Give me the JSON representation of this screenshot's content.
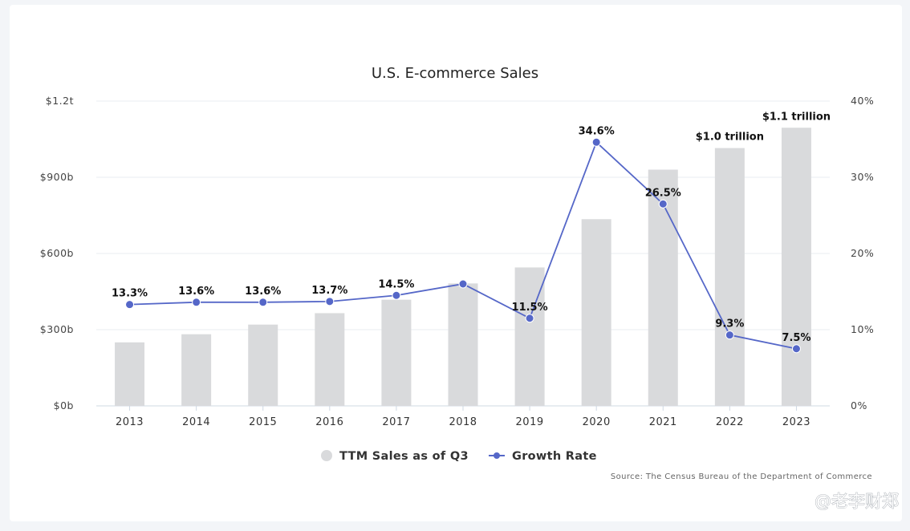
{
  "chart_data": {
    "type": "bar",
    "title": "U.S. E-commerce Sales",
    "categories": [
      "2013",
      "2014",
      "2015",
      "2016",
      "2017",
      "2018",
      "2019",
      "2020",
      "2021",
      "2022",
      "2023"
    ],
    "series": [
      {
        "name": "TTM Sales as of Q3",
        "type": "bar",
        "axis": "left",
        "color": "#d9dadc",
        "values": [
          250,
          282,
          320,
          365,
          418,
          482,
          545,
          735,
          930,
          1015,
          1095
        ]
      },
      {
        "name": "Growth Rate",
        "type": "line",
        "axis": "right",
        "color": "#5567c8",
        "values": [
          13.3,
          13.6,
          13.6,
          13.7,
          14.5,
          16.0,
          11.5,
          34.6,
          26.5,
          9.3,
          7.5
        ],
        "labels": [
          "13.3%",
          "13.6%",
          "13.6%",
          "13.7%",
          "14.5%",
          "",
          "11.5%",
          "34.6%",
          "26.5%",
          "9.3%",
          "7.5%"
        ]
      }
    ],
    "bar_annotations": [
      {
        "category": "2022",
        "text": "$1.0 trillion"
      },
      {
        "category": "2023",
        "text": "$1.1 trillion"
      }
    ],
    "y_left": {
      "min": 0,
      "max": 1200,
      "ticks": [
        0,
        300,
        600,
        900,
        1200
      ],
      "tick_labels": [
        "$0b",
        "$300b",
        "$600b",
        "$900b",
        "$1.2t"
      ]
    },
    "y_right": {
      "min": 0,
      "max": 40,
      "ticks": [
        0,
        10,
        20,
        30,
        40
      ],
      "tick_labels": [
        "0%",
        "10%",
        "20%",
        "30%",
        "40%"
      ]
    },
    "grid": true,
    "legend_position": "bottom-center"
  },
  "source": "Source: The Census Bureau of the Department of Commerce",
  "watermark": "@老李财郑"
}
